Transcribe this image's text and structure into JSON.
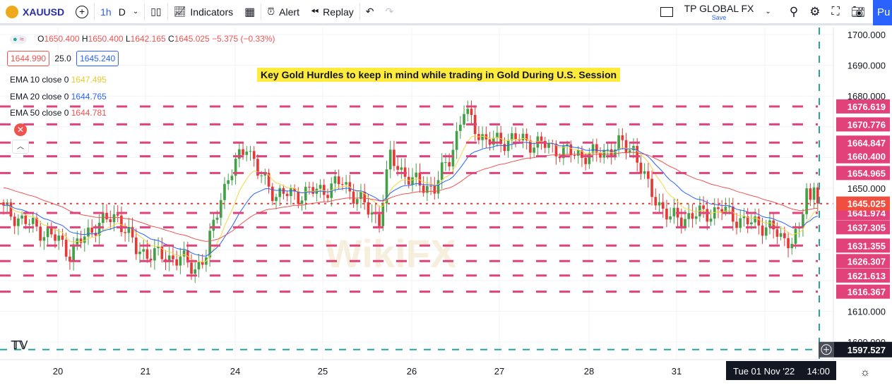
{
  "toolbar": {
    "symbol": "XAUUSD",
    "interval": "1h",
    "interval2": "D",
    "indicators": "Indicators",
    "alert": "Alert",
    "replay": "Replay",
    "broker": "TP GLOBAL FX",
    "save": "Save",
    "publish": "Pu"
  },
  "legend": {
    "ohlc": {
      "o_label": "O",
      "o": "1650.400",
      "h_label": "H",
      "h": "1650.400",
      "l_label": "L",
      "l": "1642.165",
      "c_label": "C",
      "c": "1645.025",
      "change": "−5.375 (−0.33%)"
    },
    "bid": "1644.990",
    "spread": "25.0",
    "ask": "1645.240",
    "emas": [
      {
        "label": "EMA 10 close 0",
        "value": "1647.495",
        "color": "#f5d742"
      },
      {
        "label": "EMA 20 close 0",
        "value": "1644.765",
        "color": "#2962ff"
      },
      {
        "label": "EMA 50 close 0",
        "value": "1644.781",
        "color": "#ef5350"
      }
    ]
  },
  "annotation": "Key Gold Hurdles to keep in mind while trading in Gold During U.S. Session",
  "chart_data": {
    "type": "candlestick",
    "symbol": "XAUUSD",
    "timeframe": "1h",
    "price_ticks": [
      1700,
      1690,
      1680,
      1650,
      1610,
      1600
    ],
    "levels": [
      1676.619,
      1670.776,
      1664.847,
      1660.4,
      1654.965,
      1641.974,
      1637.305,
      1631.355,
      1626.307,
      1621.613,
      1616.367
    ],
    "level_labels": [
      "1676.619",
      "1670.776",
      "1664.847",
      "1660.400",
      "1654.965",
      "1641.974",
      "1637.305",
      "1631.355",
      "1626.307",
      "1621.613",
      "1616.367"
    ],
    "last_price": 1645.025,
    "last_price_label": "1645.025",
    "crosshair_price": 1597.527,
    "crosshair_label": "1597.527",
    "crosshair_time": "Tue 01 Nov '22",
    "crosshair_hour": "14:00",
    "x_labels": [
      "20",
      "21",
      "24",
      "25",
      "26",
      "27",
      "28",
      "31"
    ],
    "bar_count": 222,
    "close_path": [
      [
        0,
        1643
      ],
      [
        15,
        1633
      ],
      [
        18,
        1629
      ],
      [
        25,
        1638
      ],
      [
        31,
        1641
      ],
      [
        36,
        1630
      ],
      [
        42,
        1628
      ],
      [
        48,
        1627
      ],
      [
        52,
        1624
      ],
      [
        55,
        1628
      ],
      [
        59,
        1648
      ],
      [
        64,
        1660
      ],
      [
        66,
        1665
      ],
      [
        69,
        1655
      ],
      [
        74,
        1648
      ],
      [
        80,
        1648
      ],
      [
        88,
        1650
      ],
      [
        92,
        1652
      ],
      [
        99,
        1643
      ],
      [
        102,
        1640
      ],
      [
        105,
        1660
      ],
      [
        111,
        1652
      ],
      [
        117,
        1650
      ],
      [
        121,
        1660
      ],
      [
        125,
        1675
      ],
      [
        131,
        1665
      ],
      [
        139,
        1666
      ],
      [
        147,
        1664
      ],
      [
        155,
        1661
      ],
      [
        161,
        1661
      ],
      [
        167,
        1664
      ],
      [
        171,
        1663
      ],
      [
        175,
        1650
      ],
      [
        181,
        1640
      ],
      [
        187,
        1641
      ],
      [
        195,
        1643
      ],
      [
        201,
        1639
      ],
      [
        207,
        1638
      ],
      [
        212,
        1633
      ],
      [
        216,
        1635
      ],
      [
        219,
        1645
      ],
      [
        216,
        1640
      ],
      [
        218,
        1650
      ],
      [
        219,
        1655
      ],
      [
        220,
        1652
      ],
      [
        221,
        1645
      ]
    ]
  },
  "colors": {
    "up": "#26a69a",
    "down": "#ef5350",
    "level": "#e2427a",
    "accent": "#2962ff"
  }
}
